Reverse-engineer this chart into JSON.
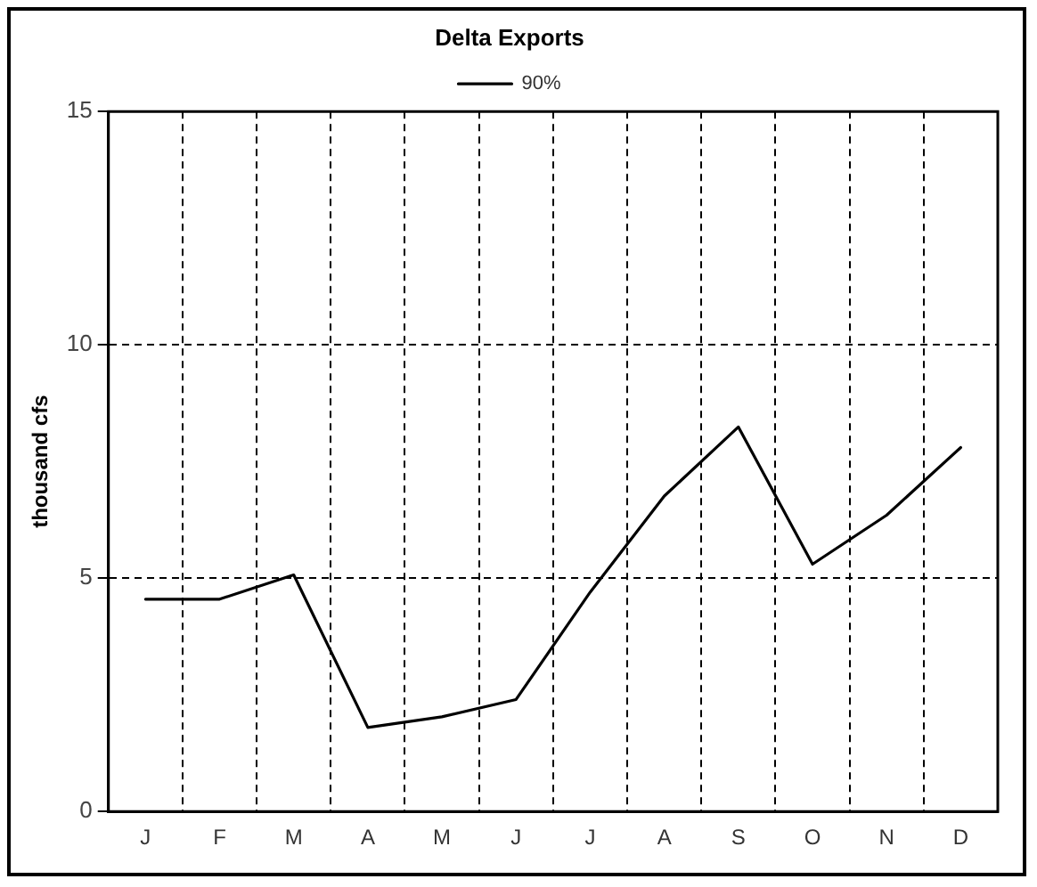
{
  "chart_data": {
    "type": "line",
    "title": "Delta Exports",
    "ylabel": "thousand cfs",
    "categories": [
      "J",
      "F",
      "M",
      "A",
      "M",
      "J",
      "J",
      "A",
      "S",
      "O",
      "N",
      "D"
    ],
    "series": [
      {
        "name": "90%",
        "color": "#000000",
        "values": [
          4.55,
          4.55,
          5.07,
          1.8,
          2.03,
          2.4,
          4.7,
          6.76,
          8.24,
          5.3,
          6.35,
          7.8
        ]
      }
    ],
    "ylim": [
      0,
      15
    ],
    "yticks": [
      0,
      5,
      10,
      15
    ],
    "grid": true,
    "legend": "top",
    "marker": "none",
    "line_style": "solid"
  }
}
